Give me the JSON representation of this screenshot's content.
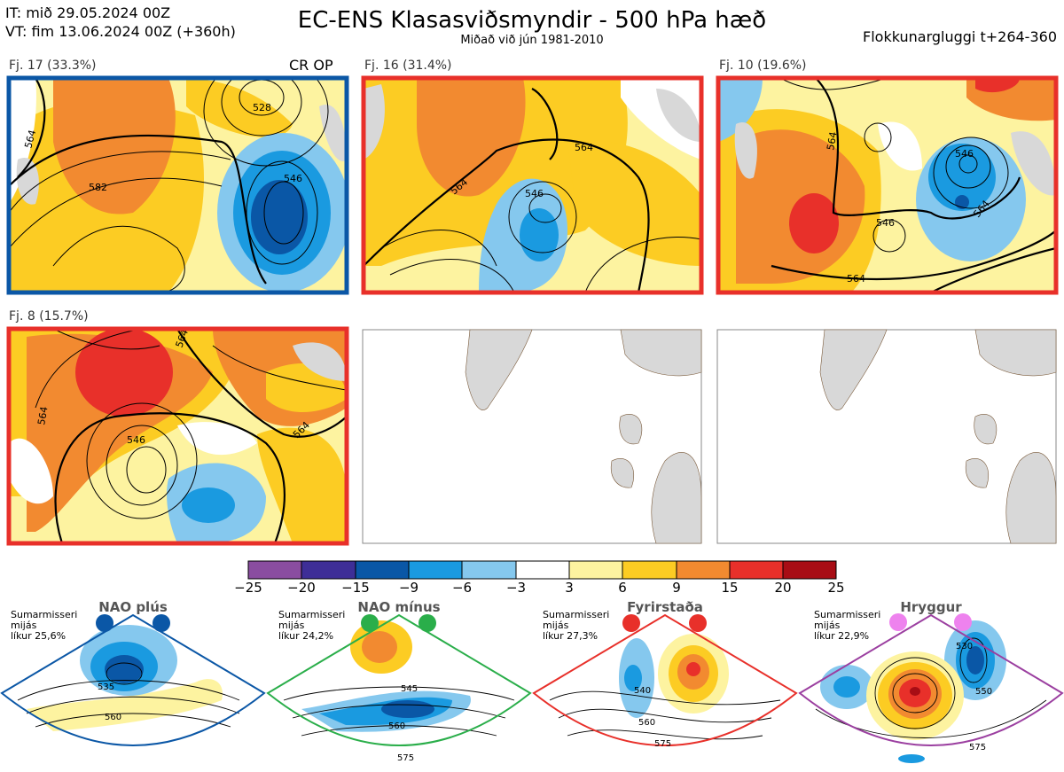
{
  "header": {
    "it": "IT: mið 29.05.2024 00Z",
    "vt": "VT: fim 13.06.2024 00Z  (+360h)",
    "title": "EC-ENS Klasasviðsmyndir - 500 hPa hæð",
    "subtitle": "Miðað við jún 1981-2010",
    "window": "Flokkunargluggi t+264-360"
  },
  "panels": [
    {
      "label": "Fj. 17 (33.3%)",
      "border": "#0b57a6",
      "tag": "CR OP"
    },
    {
      "label": "Fj. 16 (31.4%)",
      "border": "#e8302a",
      "tag": ""
    },
    {
      "label": "Fj. 10 (19.6%)",
      "border": "#e8302a",
      "tag": ""
    },
    {
      "label": "Fj. 8 (15.7%)",
      "border": "#e8302a",
      "tag": ""
    },
    {
      "label": "",
      "border": "#888888",
      "tag": ""
    },
    {
      "label": "",
      "border": "#888888",
      "tag": ""
    }
  ],
  "contour_labels": [
    "564",
    "546",
    "582",
    "528"
  ],
  "colorbar": {
    "ticks": [
      "−25",
      "−20",
      "−15",
      "−9",
      "−6",
      "−3",
      "3",
      "6",
      "9",
      "15",
      "20",
      "25"
    ],
    "colors": [
      "#8a4da0",
      "#3e2e97",
      "#0a57a6",
      "#1a9ae0",
      "#85c8ee",
      "#ffffff",
      "#fdf3a0",
      "#fccc23",
      "#f28a30",
      "#e8302a",
      "#a80d15"
    ]
  },
  "climates": [
    {
      "name": "NAO plús",
      "line1": "Sumarmisseri",
      "line2": "mijás",
      "line3": "líkur 25,6%",
      "color": "#0b57a6",
      "labels": [
        "535",
        "560"
      ]
    },
    {
      "name": "NAO mínus",
      "line1": "Sumarmisseri",
      "line2": "mijás",
      "line3": "líkur 24,2%",
      "color": "#2aae4a",
      "labels": [
        "545",
        "560",
        "575"
      ]
    },
    {
      "name": "Fyrirstaða",
      "line1": "Sumarmisseri",
      "line2": "mijás",
      "line3": "líkur 27,3%",
      "color": "#e8302a",
      "labels": [
        "540",
        "560",
        "575"
      ]
    },
    {
      "name": "Hryggur",
      "line1": "Sumarmisseri",
      "line2": "mijás",
      "line3": "líkur 22,9%",
      "color": "#ee82ee",
      "labels": [
        "530",
        "550",
        "575"
      ]
    }
  ]
}
